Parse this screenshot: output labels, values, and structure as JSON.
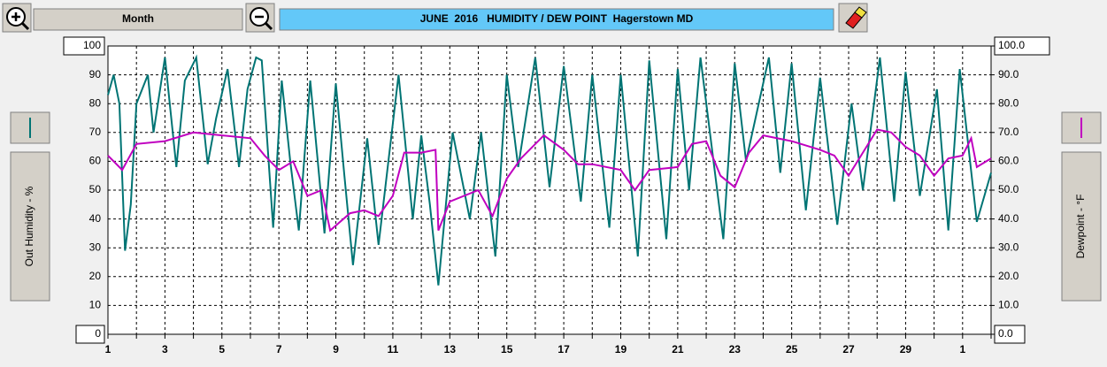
{
  "chart_data": {
    "type": "line",
    "title": "JUNE  2016   HUMIDITY / DEW POINT  Hagerstown MD",
    "range_button": "Month",
    "xlim": [
      1,
      32
    ],
    "xticks": [
      1,
      {
        "value": 2,
        "label": null
      },
      3,
      {
        "value": 4,
        "label": null
      },
      5,
      {
        "value": 6,
        "label": null
      },
      7,
      {
        "value": 8,
        "label": null
      },
      9,
      {
        "value": 10,
        "label": null
      },
      11,
      {
        "value": 12,
        "label": null
      },
      13,
      {
        "value": 14,
        "label": null
      },
      15,
      {
        "value": 16,
        "label": null
      },
      17,
      {
        "value": 18,
        "label": null
      },
      19,
      {
        "value": 20,
        "label": null
      },
      21,
      {
        "value": 22,
        "label": null
      },
      23,
      {
        "value": 24,
        "label": null
      },
      25,
      {
        "value": 26,
        "label": null
      },
      27,
      {
        "value": 28,
        "label": null
      },
      29,
      {
        "value": 30,
        "label": null
      },
      {
        "value": 31,
        "label": "1"
      },
      {
        "value": 32,
        "label": null
      }
    ],
    "ylim": [
      0,
      100
    ],
    "yticks": [
      0,
      10,
      20,
      30,
      40,
      50,
      60,
      70,
      80,
      90,
      100
    ],
    "y2lim": [
      0,
      100
    ],
    "y2ticks": [
      {
        "value": 0,
        "label": "0.0"
      },
      {
        "value": 10,
        "label": "10.0"
      },
      {
        "value": 20,
        "label": "20.0"
      },
      {
        "value": 30,
        "label": "30.0"
      },
      {
        "value": 40,
        "label": "40.0"
      },
      {
        "value": 50,
        "label": "50.0"
      },
      {
        "value": 60,
        "label": "60.0"
      },
      {
        "value": 70,
        "label": "70.0"
      },
      {
        "value": 80,
        "label": "80.0"
      },
      {
        "value": 90,
        "label": "90.0"
      },
      {
        "value": 100,
        "label": "100.0"
      }
    ],
    "grid": true,
    "series": [
      {
        "name": "Out Humidity - %",
        "color": "#007474",
        "x": [
          1,
          1.2,
          1.4,
          1.6,
          1.8,
          2,
          2.4,
          2.6,
          3,
          3.4,
          3.7,
          4.1,
          4.5,
          4.8,
          5.2,
          5.6,
          5.9,
          6.2,
          6.4,
          6.8,
          7.1,
          7.4,
          7.7,
          8.1,
          8.6,
          9,
          9.3,
          9.6,
          10.1,
          10.5,
          11.2,
          11.7,
          12,
          12.3,
          12.6,
          13.1,
          13.7,
          14.1,
          14.6,
          15,
          15.4,
          16,
          16.5,
          17,
          17.6,
          18,
          18.6,
          19,
          19.6,
          20,
          20.6,
          21,
          21.4,
          21.8,
          22.6,
          23,
          23.4,
          24.2,
          24.6,
          25,
          25.5,
          26,
          26.6,
          27.1,
          27.5,
          28.1,
          28.6,
          29,
          29.5,
          30.1,
          30.5,
          30.9,
          31.5,
          32
        ],
        "values": [
          83,
          90,
          80,
          29,
          45,
          80,
          90,
          70,
          96,
          58,
          88,
          96,
          59,
          75,
          92,
          58,
          85,
          96,
          95,
          37,
          88,
          60,
          36,
          88,
          35,
          87,
          55,
          24,
          68,
          31,
          90,
          40,
          69,
          45,
          17,
          70,
          40,
          70,
          27,
          90,
          58,
          96,
          51,
          93,
          46,
          90,
          37,
          90,
          27,
          95,
          33,
          92,
          50,
          96,
          33,
          94,
          60,
          96,
          56,
          94,
          43,
          89,
          38,
          80,
          50,
          96,
          46,
          91,
          48,
          85,
          36,
          92,
          39,
          56
        ]
      },
      {
        "name": "Dewpoint - °F",
        "color": "#c000c0",
        "axis": "y2",
        "x": [
          1,
          1.5,
          2,
          3,
          4,
          5,
          6,
          6.5,
          7,
          7.5,
          8,
          8.5,
          8.8,
          9.5,
          10,
          10.5,
          11,
          11.4,
          12,
          12.5,
          12.6,
          13,
          14,
          14.5,
          15,
          15.5,
          16.3,
          17,
          17.5,
          18,
          19,
          19.5,
          20,
          21,
          21.5,
          22,
          22.5,
          23,
          23.5,
          24,
          25,
          26,
          26.5,
          27,
          27.5,
          28,
          28.5,
          29,
          29.5,
          30,
          30.5,
          31,
          31.3,
          31.5,
          32
        ],
        "values": [
          62,
          57,
          66,
          67,
          70,
          69,
          68,
          62,
          57,
          60,
          48,
          50,
          36,
          42,
          43,
          41,
          48,
          63,
          63,
          64,
          36,
          46,
          50,
          41,
          54,
          61,
          69,
          64,
          59,
          59,
          57,
          50,
          57,
          58,
          66,
          67,
          55,
          51,
          63,
          69,
          67,
          64,
          62,
          55,
          63,
          71,
          70,
          65,
          62,
          55,
          61,
          62,
          68,
          58,
          61
        ]
      }
    ]
  }
}
